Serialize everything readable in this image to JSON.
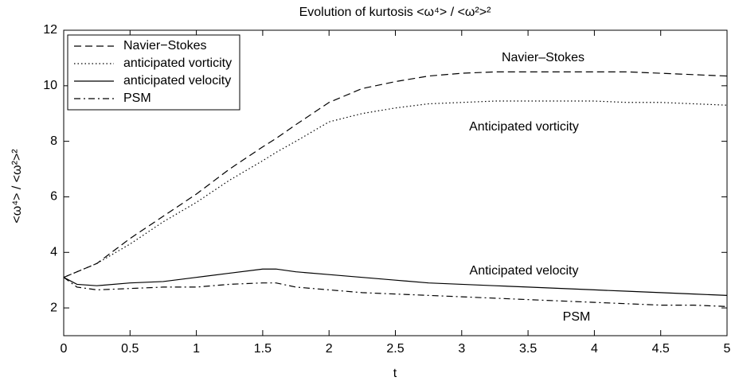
{
  "chart_data": {
    "type": "line",
    "title": "Evolution of kurtosis <ω⁴> / <ω²>²",
    "x_label": "t",
    "y_label": "<ω⁴> / <ω²>²",
    "x": [
      0,
      0.1,
      0.25,
      0.5,
      0.75,
      1,
      1.25,
      1.5,
      1.6,
      1.75,
      2,
      2.25,
      2.5,
      2.75,
      3,
      3.25,
      3.5,
      3.75,
      4,
      4.25,
      4.5,
      4.75,
      5
    ],
    "series": [
      {
        "name": "Navier−Stokes",
        "color": "#000000",
        "dash": "dashed",
        "values": [
          3.1,
          3.3,
          3.6,
          4.5,
          5.3,
          6.1,
          7.0,
          7.8,
          8.1,
          8.6,
          9.4,
          9.9,
          10.15,
          10.35,
          10.45,
          10.5,
          10.5,
          10.5,
          10.5,
          10.5,
          10.45,
          10.4,
          10.35
        ]
      },
      {
        "name": "anticipated vorticity",
        "color": "#000000",
        "dash": "dotted",
        "values": [
          3.1,
          3.3,
          3.6,
          4.3,
          5.1,
          5.8,
          6.6,
          7.3,
          7.6,
          8.0,
          8.7,
          9.0,
          9.2,
          9.35,
          9.4,
          9.45,
          9.45,
          9.45,
          9.45,
          9.4,
          9.4,
          9.35,
          9.3
        ]
      },
      {
        "name": "anticipated velocity",
        "color": "#000000",
        "dash": "solid",
        "values": [
          3.1,
          2.85,
          2.8,
          2.9,
          2.95,
          3.1,
          3.25,
          3.4,
          3.4,
          3.3,
          3.2,
          3.1,
          3.0,
          2.9,
          2.85,
          2.8,
          2.75,
          2.7,
          2.65,
          2.6,
          2.55,
          2.5,
          2.45
        ]
      },
      {
        "name": "PSM",
        "color": "#000000",
        "dash": "dashdot",
        "values": [
          3.1,
          2.75,
          2.65,
          2.7,
          2.75,
          2.75,
          2.85,
          2.9,
          2.9,
          2.75,
          2.65,
          2.55,
          2.5,
          2.45,
          2.4,
          2.35,
          2.3,
          2.25,
          2.2,
          2.15,
          2.1,
          2.1,
          2.05
        ]
      }
    ],
    "annotations": [
      "Navier–Stokes",
      "Anticipated vorticity",
      "Anticipated velocity",
      "PSM"
    ],
    "xlim": [
      0,
      5
    ],
    "xticks": [
      0,
      0.5,
      1,
      1.5,
      2,
      2.5,
      3,
      3.5,
      4,
      4.5,
      5
    ],
    "ylim": [
      1,
      12
    ],
    "yticks": [
      2,
      4,
      6,
      8,
      10,
      12
    ],
    "grid": false,
    "legend": "upper left"
  }
}
